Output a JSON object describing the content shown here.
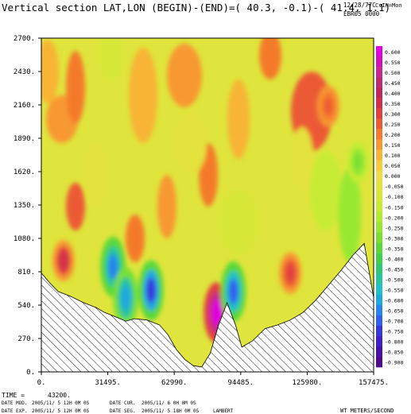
{
  "header": {
    "title": "Vertical section LAT,LON (BEGIN)-(END)=( 40.3, -0.1)-( 41.4,  1.1)",
    "date_code": "12/28/77C",
    "mode": "CvIH=Mon",
    "run_id": "EBR05 0000"
  },
  "chart_data": {
    "type": "heatmap",
    "title": "Vertical section LAT,LON (BEGIN)-(END)=( 40.3, -0.1)-( 41.4,  1.1)",
    "xlabel": "",
    "ylabel": "",
    "xlim": [
      0,
      157475
    ],
    "ylim": [
      0,
      2700
    ],
    "x_ticks": [
      "0.",
      "31495.",
      "62990.",
      "94485.",
      "125980.",
      "157475."
    ],
    "y_ticks": [
      "0.",
      "270.",
      "540.",
      "810.",
      "1080.",
      "1350.",
      "1620.",
      "1890.",
      "2160.",
      "2430.",
      "2700."
    ],
    "x_tick_values": [
      0,
      31495,
      62990,
      94485,
      125980,
      157475
    ],
    "y_tick_values": [
      0,
      270,
      540,
      810,
      1080,
      1350,
      1620,
      1890,
      2160,
      2430,
      2700
    ],
    "variable": "WT METERS/SECOND",
    "colorbar": {
      "levels": [
        "0.600",
        "0.550",
        "0.500",
        "0.450",
        "0.400",
        "0.350",
        "0.300",
        "0.250",
        "0.200",
        "0.150",
        "0.100",
        "0.050",
        "0.000",
        "-0.050",
        "-0.100",
        "-0.150",
        "-0.200",
        "-0.250",
        "-0.300",
        "-0.350",
        "-0.400",
        "-0.450",
        "-0.500",
        "-0.550",
        "-0.600",
        "-0.650",
        "-0.700",
        "-0.750",
        "-0.800",
        "-0.850",
        "-0.900"
      ],
      "colors": [
        "#e000e0",
        "#d410b8",
        "#c82890",
        "#bc2c70",
        "#c0285c",
        "#d03048",
        "#e04040",
        "#ec5a34",
        "#f47a2c",
        "#f89830",
        "#f8b434",
        "#f8cc3a",
        "#f0dc44",
        "#e4e23c",
        "#d8e838",
        "#c8ec34",
        "#b0ec30",
        "#98e830",
        "#78e030",
        "#5ad838",
        "#40d04c",
        "#30c870",
        "#28c4a0",
        "#20c0c8",
        "#20a8e0",
        "#2884f0",
        "#3060f0",
        "#3838e0",
        "#4020c8",
        "#4812a8",
        "#500c90"
      ]
    },
    "terrain_profile": {
      "x": [
        0,
        4000,
        8000,
        14000,
        20000,
        26000,
        30000,
        36000,
        40000,
        44000,
        50000,
        56000,
        60000,
        64000,
        68000,
        72000,
        76000,
        80000,
        84000,
        88000,
        92000,
        95000,
        100000,
        106000,
        112000,
        118000,
        124000,
        130000,
        136000,
        142000,
        148000,
        153000,
        157475
      ],
      "y": [
        800,
        720,
        650,
        610,
        560,
        520,
        480,
        440,
        410,
        430,
        420,
        380,
        300,
        180,
        100,
        50,
        40,
        150,
        380,
        560,
        380,
        200,
        250,
        350,
        380,
        420,
        480,
        580,
        700,
        820,
        950,
        1040,
        600
      ]
    },
    "features": [
      {
        "x": 10500,
        "y": 900,
        "value": 0.35
      },
      {
        "x": 34000,
        "y": 850,
        "value": -0.65
      },
      {
        "x": 40000,
        "y": 600,
        "value": -0.6
      },
      {
        "x": 52000,
        "y": 660,
        "value": -0.75
      },
      {
        "x": 83000,
        "y": 480,
        "value": 0.6
      },
      {
        "x": 91000,
        "y": 650,
        "value": -0.7
      },
      {
        "x": 118000,
        "y": 800,
        "value": 0.3
      },
      {
        "x": 136000,
        "y": 2150,
        "value": 0.25
      },
      {
        "x": 150000,
        "y": 1700,
        "value": -0.3
      }
    ]
  },
  "footer": {
    "time_label": "TIME =",
    "time_value": "43200.",
    "date_mod_label": "DATE MOD.",
    "date_mod_value": "2005/11/ 5   12H 0M 0S",
    "date_cur_label": "DATE CUR.",
    "date_cur_value": "2005/11/ 6    0H 0M 0S",
    "date_exp_label": "DATE EXP.",
    "date_exp_value": "2005/11/ 5   12H 0M 0S",
    "date_seg_label": "DATE SEG.",
    "date_seg_value": "2005/11/ 5   18H 0M 0S",
    "projection": "LAMBERT",
    "variable_label": "WT METERS/SECOND"
  }
}
